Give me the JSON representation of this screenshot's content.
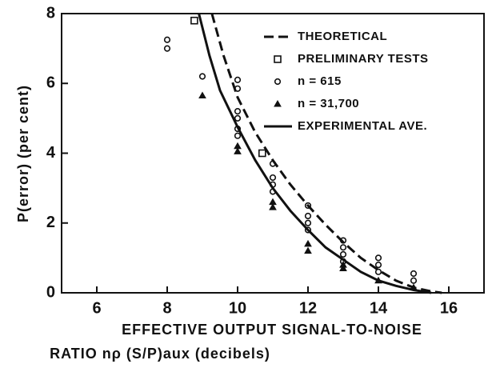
{
  "chart_data": {
    "type": "line",
    "xlabel": [
      "EFFECTIVE OUTPUT SIGNAL-TO-NOISE",
      "RATIO nρ (S/P)aux (decibels)"
    ],
    "ylabel": "P(error) (per cent)",
    "xlim": [
      5,
      17
    ],
    "ylim": [
      0,
      8
    ],
    "xticks": [
      6,
      8,
      10,
      12,
      14,
      16
    ],
    "yticks": [
      0,
      2,
      4,
      6,
      8
    ],
    "color": "#111111",
    "series": [
      {
        "name": "THEORETICAL",
        "style": "dashed",
        "x": [
          9.27,
          9.6,
          10,
          10.5,
          11,
          11.5,
          12,
          12.5,
          13,
          13.5,
          14,
          14.5,
          15,
          15.5,
          15.8
        ],
        "values": [
          8,
          6.8,
          5.6,
          4.6,
          3.8,
          3.1,
          2.5,
          1.95,
          1.45,
          1.0,
          0.65,
          0.35,
          0.15,
          0.04,
          0
        ]
      },
      {
        "name": "PRELIMINARY TESTS",
        "style": "square",
        "x": [
          8.77,
          10.7
        ],
        "values": [
          7.8,
          4.0
        ]
      },
      {
        "name": "n = 615",
        "style": "circle",
        "x": [
          8,
          8,
          9,
          10,
          10,
          10,
          10,
          10,
          10,
          11,
          11,
          11,
          11,
          12,
          12,
          12,
          12,
          13,
          13,
          13,
          13,
          14,
          14,
          14,
          15,
          15
        ],
        "values": [
          7.25,
          7.0,
          6.2,
          6.1,
          5.85,
          5.2,
          5.0,
          4.7,
          4.5,
          3.7,
          3.3,
          3.1,
          2.9,
          2.5,
          2.2,
          2.0,
          1.8,
          1.5,
          1.3,
          1.1,
          0.9,
          1.0,
          0.8,
          0.6,
          0.55,
          0.35
        ]
      },
      {
        "name": "n = 31,700",
        "style": "triangle",
        "x": [
          9,
          10,
          10,
          11,
          11,
          12,
          12,
          13,
          13,
          14,
          15
        ],
        "values": [
          5.65,
          4.2,
          4.05,
          2.6,
          2.45,
          1.4,
          1.2,
          0.8,
          0.7,
          0.35,
          0.15
        ]
      },
      {
        "name": "EXPERIMENTAL AVE.",
        "style": "solid",
        "x": [
          8.9,
          9.2,
          9.5,
          10,
          10.5,
          11,
          11.5,
          12,
          12.5,
          13,
          13.5,
          14,
          14.5,
          15,
          15.5
        ],
        "values": [
          8,
          6.8,
          5.8,
          4.75,
          3.8,
          3.0,
          2.35,
          1.8,
          1.3,
          0.95,
          0.6,
          0.35,
          0.2,
          0.08,
          0
        ]
      }
    ]
  }
}
